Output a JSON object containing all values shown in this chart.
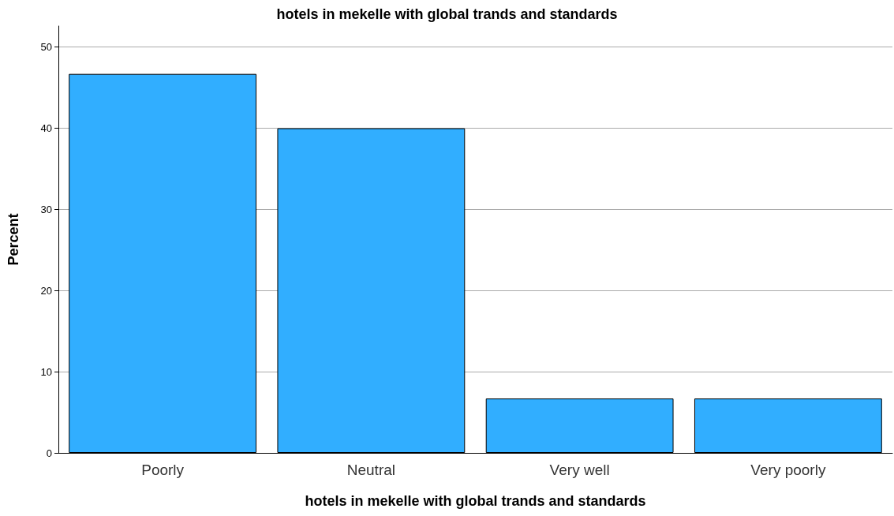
{
  "chart_data": {
    "type": "bar",
    "title": "hotels in mekelle with global trands and standards",
    "xlabel": "hotels in mekelle with global trands and standards",
    "ylabel": "Percent",
    "categories": [
      "Poorly",
      "Neutral",
      "Very well",
      "Very poorly"
    ],
    "values": [
      46.7,
      40.0,
      6.7,
      6.7
    ],
    "color": "#31aeff",
    "ylim": [
      0,
      52.6
    ],
    "yticks": [
      0,
      10,
      20,
      30,
      40,
      50
    ],
    "grid": "y"
  }
}
